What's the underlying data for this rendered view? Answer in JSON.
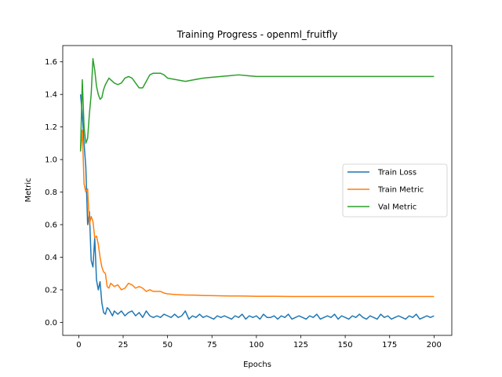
{
  "chart_data": {
    "type": "line",
    "title": "Training Progress - openml_fruitfly",
    "xlabel": "Epochs",
    "ylabel": "Metric",
    "xlim": [
      -9,
      210
    ],
    "ylim": [
      -0.08,
      1.7
    ],
    "xticks": [
      0,
      25,
      50,
      75,
      100,
      125,
      150,
      175,
      200
    ],
    "yticks": [
      0.0,
      0.2,
      0.4,
      0.6,
      0.8,
      1.0,
      1.2,
      1.4,
      1.6
    ],
    "ytick_labels": [
      "0.0",
      "0.2",
      "0.4",
      "0.6",
      "0.8",
      "1.0",
      "1.2",
      "1.4",
      "1.6"
    ],
    "grid": false,
    "legend_position": "center-right",
    "series": [
      {
        "name": "Train Loss",
        "color": "#1f77b4",
        "x": [
          1,
          2,
          3,
          4,
          5,
          6,
          7,
          8,
          9,
          10,
          11,
          12,
          13,
          14,
          15,
          16,
          17,
          18,
          19,
          20,
          22,
          24,
          26,
          28,
          30,
          32,
          34,
          36,
          38,
          40,
          42,
          44,
          46,
          48,
          50,
          52,
          54,
          56,
          58,
          60,
          62,
          64,
          66,
          68,
          70,
          72,
          74,
          76,
          78,
          80,
          82,
          84,
          86,
          88,
          90,
          92,
          94,
          96,
          98,
          100,
          102,
          104,
          106,
          108,
          110,
          112,
          114,
          116,
          118,
          120,
          122,
          124,
          126,
          128,
          130,
          132,
          134,
          136,
          138,
          140,
          142,
          144,
          146,
          148,
          150,
          152,
          154,
          156,
          158,
          160,
          162,
          164,
          166,
          168,
          170,
          172,
          174,
          176,
          178,
          180,
          182,
          184,
          186,
          188,
          190,
          192,
          194,
          196,
          198,
          200
        ],
        "values": [
          1.4,
          1.28,
          1.1,
          0.95,
          0.6,
          0.68,
          0.38,
          0.34,
          0.52,
          0.26,
          0.2,
          0.25,
          0.12,
          0.06,
          0.05,
          0.09,
          0.08,
          0.06,
          0.04,
          0.07,
          0.05,
          0.07,
          0.04,
          0.06,
          0.07,
          0.04,
          0.06,
          0.03,
          0.07,
          0.04,
          0.03,
          0.04,
          0.03,
          0.05,
          0.04,
          0.03,
          0.05,
          0.03,
          0.04,
          0.07,
          0.02,
          0.04,
          0.03,
          0.05,
          0.03,
          0.04,
          0.03,
          0.02,
          0.04,
          0.03,
          0.04,
          0.03,
          0.02,
          0.04,
          0.03,
          0.05,
          0.02,
          0.04,
          0.03,
          0.04,
          0.02,
          0.05,
          0.03,
          0.03,
          0.04,
          0.02,
          0.04,
          0.03,
          0.05,
          0.02,
          0.03,
          0.04,
          0.03,
          0.02,
          0.04,
          0.03,
          0.05,
          0.02,
          0.03,
          0.04,
          0.03,
          0.05,
          0.02,
          0.04,
          0.03,
          0.02,
          0.04,
          0.03,
          0.05,
          0.03,
          0.02,
          0.04,
          0.03,
          0.02,
          0.05,
          0.03,
          0.04,
          0.02,
          0.03,
          0.04,
          0.03,
          0.02,
          0.04,
          0.03,
          0.05,
          0.02,
          0.03,
          0.04,
          0.03,
          0.04
        ]
      },
      {
        "name": "Train Metric",
        "color": "#ff7f0e",
        "x": [
          1,
          2,
          3,
          4,
          5,
          6,
          7,
          8,
          9,
          10,
          11,
          12,
          13,
          14,
          15,
          16,
          17,
          18,
          19,
          20,
          22,
          24,
          26,
          28,
          30,
          32,
          34,
          36,
          38,
          40,
          42,
          44,
          46,
          48,
          50,
          55,
          60,
          65,
          70,
          75,
          80,
          85,
          90,
          95,
          100,
          110,
          120,
          130,
          140,
          150,
          160,
          170,
          180,
          190,
          200
        ],
        "values": [
          1.05,
          1.18,
          0.85,
          0.8,
          0.82,
          0.6,
          0.65,
          0.62,
          0.52,
          0.53,
          0.48,
          0.4,
          0.34,
          0.31,
          0.3,
          0.22,
          0.21,
          0.24,
          0.23,
          0.22,
          0.23,
          0.2,
          0.21,
          0.24,
          0.23,
          0.21,
          0.22,
          0.21,
          0.19,
          0.2,
          0.19,
          0.19,
          0.19,
          0.18,
          0.175,
          0.17,
          0.168,
          0.167,
          0.165,
          0.164,
          0.163,
          0.162,
          0.162,
          0.161,
          0.16,
          0.16,
          0.159,
          0.159,
          0.159,
          0.159,
          0.159,
          0.159,
          0.159,
          0.159,
          0.159
        ]
      },
      {
        "name": "Val Metric",
        "color": "#2ca02c",
        "x": [
          1,
          2,
          3,
          4,
          5,
          6,
          7,
          8,
          9,
          10,
          11,
          12,
          13,
          14,
          15,
          16,
          17,
          18,
          19,
          20,
          22,
          24,
          26,
          28,
          30,
          32,
          34,
          36,
          38,
          40,
          42,
          44,
          46,
          48,
          50,
          55,
          60,
          65,
          70,
          75,
          80,
          85,
          90,
          95,
          100,
          105,
          110,
          120,
          130,
          140,
          150,
          160,
          170,
          180,
          190,
          200
        ],
        "values": [
          1.05,
          1.49,
          1.2,
          1.1,
          1.13,
          1.28,
          1.4,
          1.62,
          1.55,
          1.45,
          1.4,
          1.37,
          1.38,
          1.43,
          1.46,
          1.48,
          1.5,
          1.49,
          1.48,
          1.47,
          1.46,
          1.47,
          1.5,
          1.51,
          1.5,
          1.47,
          1.44,
          1.44,
          1.48,
          1.52,
          1.53,
          1.53,
          1.53,
          1.52,
          1.5,
          1.49,
          1.48,
          1.49,
          1.5,
          1.505,
          1.51,
          1.515,
          1.52,
          1.515,
          1.51,
          1.51,
          1.51,
          1.51,
          1.51,
          1.51,
          1.51,
          1.51,
          1.51,
          1.51,
          1.51,
          1.51
        ]
      }
    ]
  }
}
